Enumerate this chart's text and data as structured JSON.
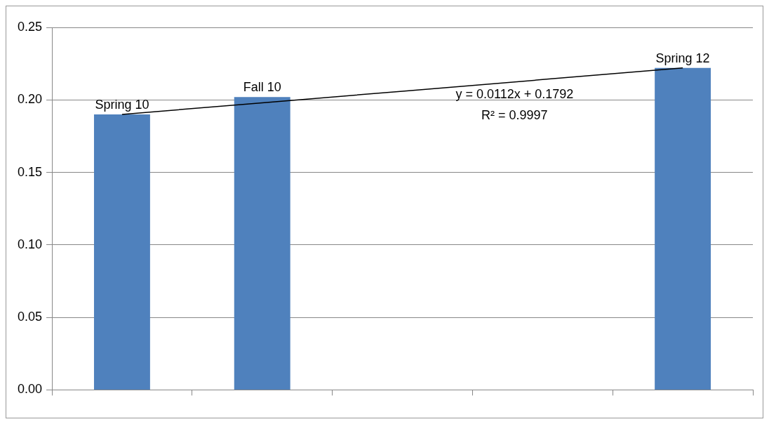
{
  "chart_data": {
    "type": "bar",
    "categories": [
      null,
      null,
      null,
      null,
      null
    ],
    "series": [
      {
        "color": "#4f81bd",
        "values": [
          0.19,
          0.202,
          null,
          null,
          0.222
        ],
        "value_labels": [
          "Spring 10",
          "Fall 10",
          null,
          null,
          "Spring 12"
        ]
      },
      {
        "type": "line",
        "color": "#000000",
        "values": [
          0.19,
          0.198,
          0.206,
          0.214,
          0.222
        ],
        "marker": "none"
      }
    ],
    "ylim": [
      0,
      0.25
    ],
    "yticks": [
      {
        "value": 0,
        "label": "0.00"
      },
      {
        "value": 0.05,
        "label": "0.05"
      },
      {
        "value": 0.1,
        "label": "0.10"
      },
      {
        "value": 0.15,
        "label": "0.15"
      },
      {
        "value": 0.2,
        "label": "0.20"
      },
      {
        "value": 0.25,
        "label": "0.25"
      }
    ],
    "grid": "y",
    "legend": false,
    "annotations": [
      "y = 0.0112x + 0.1792",
      "R² = 0.9997"
    ]
  }
}
